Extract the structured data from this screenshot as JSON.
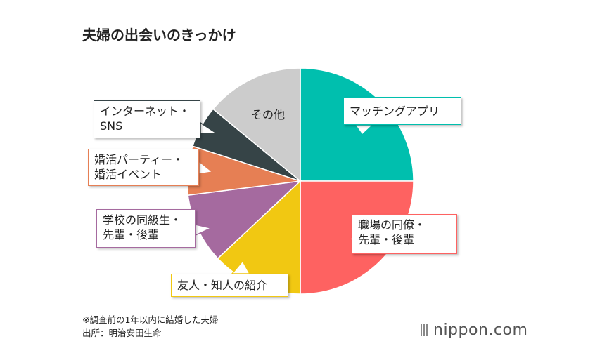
{
  "title": "夫婦の出会いのきっかけ",
  "chart_data": {
    "type": "pie",
    "title": "夫婦の出会いのきっかけ",
    "start": "12 o'clock, clockwise",
    "slices": [
      {
        "label": "マッチングアプリ",
        "line1": "マッチングアプリ",
        "line2": "",
        "value": 25,
        "color": "#00bfae"
      },
      {
        "label": "職場の同僚・先輩・後輩",
        "line1": "職場の同僚・",
        "line2": "先輩・後輩",
        "value": 25,
        "color": "#fe6261"
      },
      {
        "label": "友人・知人の紹介",
        "line1": "友人・知人の紹介",
        "line2": "",
        "value": 13,
        "color": "#f1c812"
      },
      {
        "label": "学校の同級生・先輩・後輩",
        "line1": "学校の同級生・",
        "line2": "先輩・後輩",
        "value": 10,
        "color": "#a56a9f"
      },
      {
        "label": "婚活パーティー・婚活イベント",
        "line1": "婚活パーティー・",
        "line2": "婚活イベント",
        "value": 7,
        "color": "#e67f54"
      },
      {
        "label": "インターネット・SNS",
        "line1": "インターネット・",
        "line2": "SNS",
        "value": 6,
        "color": "#364447"
      },
      {
        "label": "その他",
        "line1": "その他",
        "line2": "",
        "value": 14,
        "color": "#cccccc"
      }
    ]
  },
  "notes": {
    "line1": "※調査前の1年以内に結婚した夫婦",
    "line2": "出所：明治安田生命"
  },
  "logo": {
    "text": "nippon.com"
  }
}
